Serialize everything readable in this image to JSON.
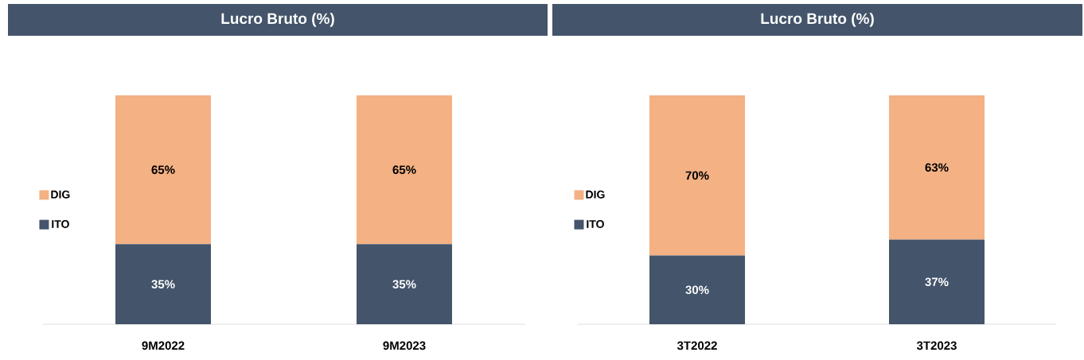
{
  "chart_data": [
    {
      "type": "bar",
      "title": "Lucro Bruto (%)",
      "stacked": true,
      "legend": "left",
      "categories": [
        "9M2022",
        "9M2023"
      ],
      "series": [
        {
          "name": "ITO",
          "color": "#44546a",
          "values": [
            35,
            35
          ],
          "value_labels": [
            "35%",
            "35%"
          ]
        },
        {
          "name": "DIG",
          "color": "#f4b183",
          "values": [
            65,
            65
          ],
          "value_labels": [
            "65%",
            "65%"
          ]
        }
      ]
    },
    {
      "type": "bar",
      "title": "Lucro Bruto (%)",
      "stacked": true,
      "legend": "left",
      "categories": [
        "3T2022",
        "3T2023"
      ],
      "series": [
        {
          "name": "ITO",
          "color": "#44546a",
          "values": [
            30,
            37
          ],
          "value_labels": [
            "30%",
            "37%"
          ]
        },
        {
          "name": "DIG",
          "color": "#f4b183",
          "values": [
            70,
            63
          ],
          "value_labels": [
            "70%",
            "63%"
          ]
        }
      ]
    }
  ]
}
